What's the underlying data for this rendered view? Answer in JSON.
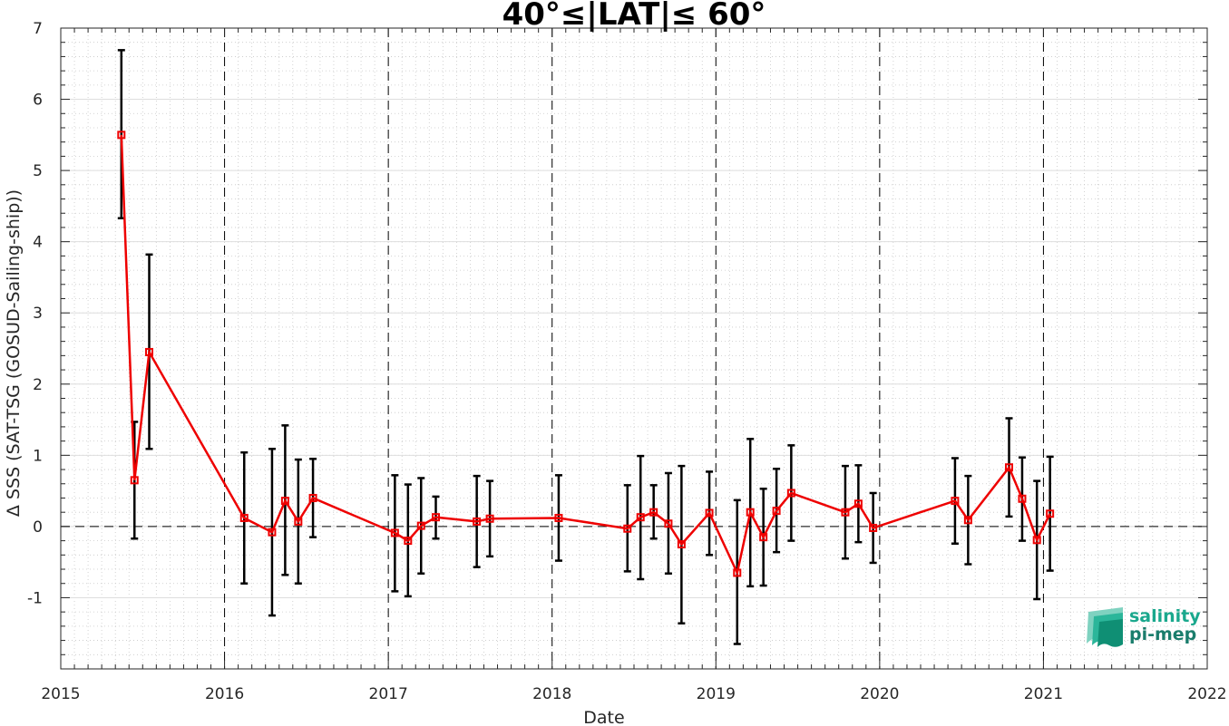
{
  "chart_data": {
    "type": "line",
    "title": "40°≤|LAT|≤ 60°",
    "xlabel": "Date",
    "ylabel": "Δ SSS (SAT-TSG (GOSUD-Sailing-ship))",
    "xlim": [
      2015,
      2022
    ],
    "ylim": [
      -2,
      7
    ],
    "x_ticks": [
      "2015",
      "2016",
      "2017",
      "2018",
      "2019",
      "2020",
      "2021",
      "2022"
    ],
    "y_ticks": [
      "-1",
      "0",
      "1",
      "2",
      "3",
      "4",
      "5",
      "6",
      "7"
    ],
    "grid": true,
    "reference_line": 0,
    "series": [
      {
        "x": [
          2015.37,
          2015.45,
          2015.54,
          2016.12,
          2016.29,
          2016.37,
          2016.45,
          2016.54,
          2017.04,
          2017.12,
          2017.2,
          2017.29,
          2017.54,
          2017.62,
          2018.04,
          2018.46,
          2018.54,
          2018.62,
          2018.71,
          2018.79,
          2018.96,
          2019.13,
          2019.21,
          2019.29,
          2019.37,
          2019.46,
          2019.79,
          2019.87,
          2019.96,
          2020.46,
          2020.54,
          2020.79,
          2020.87,
          2020.96,
          2021.04
        ],
        "y": [
          5.5,
          0.65,
          2.45,
          0.12,
          -0.08,
          0.36,
          0.07,
          0.4,
          -0.09,
          -0.2,
          0.01,
          0.13,
          0.07,
          0.11,
          0.12,
          -0.03,
          0.13,
          0.2,
          0.04,
          -0.25,
          0.19,
          -0.65,
          0.2,
          -0.15,
          0.22,
          0.47,
          0.2,
          0.32,
          -0.02,
          0.36,
          0.09,
          0.83,
          0.39,
          -0.19,
          0.18
        ],
        "yerr_low": [
          4.33,
          -0.17,
          1.09,
          -0.8,
          -1.25,
          -0.68,
          -0.8,
          -0.15,
          -0.91,
          -0.98,
          -0.66,
          -0.17,
          -0.57,
          -0.42,
          -0.48,
          -0.63,
          -0.74,
          -0.17,
          -0.66,
          -1.36,
          -0.4,
          -1.65,
          -0.84,
          -0.83,
          -0.36,
          -0.2,
          -0.45,
          -0.22,
          -0.51,
          -0.24,
          -0.53,
          0.14,
          -0.2,
          -1.02,
          -0.62
        ],
        "yerr_high": [
          6.69,
          1.47,
          3.82,
          1.04,
          1.09,
          1.42,
          0.94,
          0.95,
          0.72,
          0.59,
          0.68,
          0.42,
          0.71,
          0.64,
          0.72,
          0.58,
          0.99,
          0.58,
          0.75,
          0.85,
          0.77,
          0.37,
          1.23,
          0.53,
          0.81,
          1.14,
          0.85,
          0.86,
          0.47,
          0.96,
          0.71,
          1.52,
          0.97,
          0.64,
          0.98
        ]
      }
    ]
  },
  "logo": {
    "line1": "salinity",
    "line2": "pi-mep"
  },
  "colors": {
    "series": "#ee0000",
    "errorbar": "#000000",
    "logo": "#1a8f7a"
  }
}
